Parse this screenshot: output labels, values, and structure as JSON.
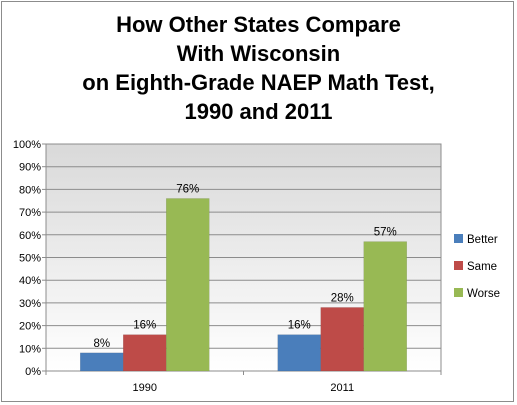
{
  "chart_data": {
    "type": "bar",
    "title_lines": [
      "How Other States Compare",
      "With Wisconsin",
      "on Eighth-Grade NAEP Math Test,",
      "1990 and 2011"
    ],
    "categories": [
      "1990",
      "2011"
    ],
    "series": [
      {
        "name": "Better",
        "values": [
          8,
          16
        ],
        "labels": [
          "8%",
          "16%"
        ],
        "color": "#4a7ebb"
      },
      {
        "name": "Same",
        "values": [
          16,
          28
        ],
        "labels": [
          "16%",
          "28%"
        ],
        "color": "#be4b48"
      },
      {
        "name": "Worse",
        "values": [
          76,
          57
        ],
        "labels": [
          "76%",
          "57%"
        ],
        "color": "#98b954"
      }
    ],
    "y_ticks": [
      "0%",
      "10%",
      "20%",
      "30%",
      "40%",
      "50%",
      "60%",
      "70%",
      "80%",
      "90%",
      "100%"
    ],
    "ylim": [
      0,
      100
    ],
    "grid": true,
    "legend_position": "right"
  }
}
